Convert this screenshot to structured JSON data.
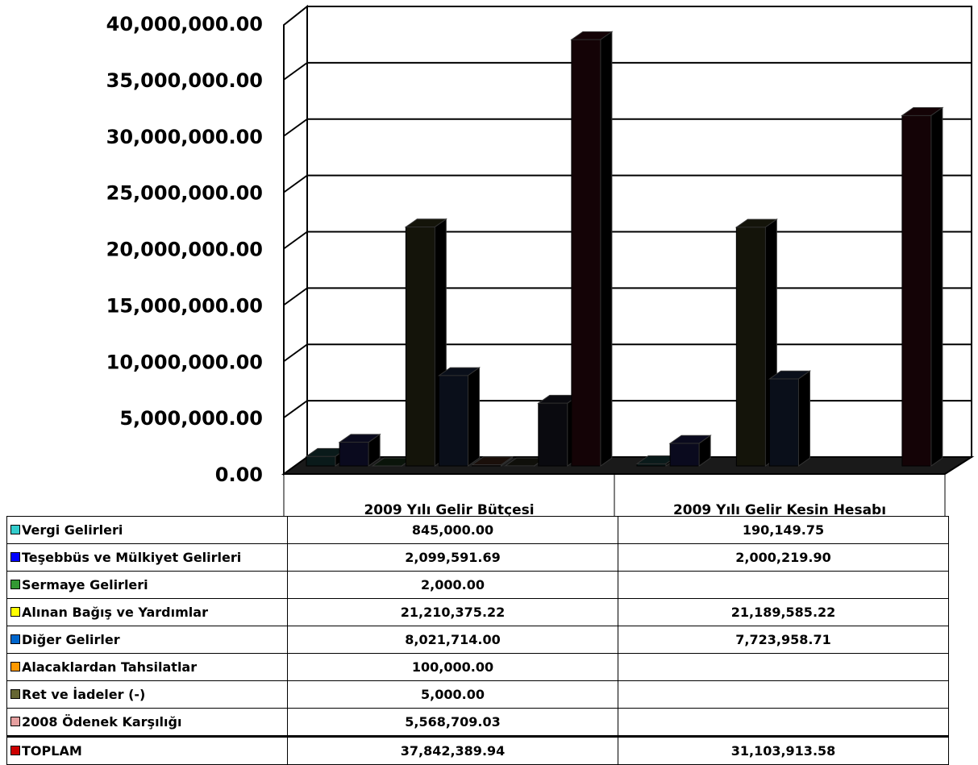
{
  "chart_data": {
    "type": "bar",
    "categories": [
      "2009  Yılı  Gelir Bütçesi",
      "2009 Yılı Gelir Kesin Hesabı"
    ],
    "ylim": [
      0,
      40000000
    ],
    "yticks": [
      "0.00",
      "5,000,000.00",
      "10,000,000.00",
      "15,000,000.00",
      "20,000,000.00",
      "25,000,000.00",
      "30,000,000.00",
      "35,000,000.00",
      "40,000,000.00"
    ],
    "grid": true,
    "legend": "table below chart",
    "series": [
      {
        "name": "Vergi Gelirleri",
        "values": [
          845000.0,
          190149.75
        ],
        "labels": [
          "845,000.00",
          "190,149.75"
        ],
        "swatch": "#33cccc",
        "bar": "#0a1a1a"
      },
      {
        "name": "Teşebbüs ve Mülkiyet Gelirleri",
        "values": [
          2099591.69,
          2000219.9
        ],
        "labels": [
          "2,099,591.69",
          "2,000,219.90"
        ],
        "swatch": "#0000ff",
        "bar": "#0a0a1e"
      },
      {
        "name": "Sermaye Gelirleri",
        "values": [
          2000.0,
          null
        ],
        "labels": [
          "2,000.00",
          ""
        ],
        "swatch": "#339933",
        "bar": "#0a140a"
      },
      {
        "name": "Alınan Bağış ve Yardımlar",
        "values": [
          21210375.22,
          21189585.22
        ],
        "labels": [
          "21,210,375.22",
          "21,189,585.22"
        ],
        "swatch": "#ffff00",
        "bar": "#14140a"
      },
      {
        "name": "Diğer Gelirler",
        "values": [
          8021714.0,
          7723958.71
        ],
        "labels": [
          "8,021,714.00",
          "7,723,958.71"
        ],
        "swatch": "#0066cc",
        "bar": "#0a0f1a"
      },
      {
        "name": "Alacaklardan Tahsilatlar",
        "values": [
          100000.0,
          null
        ],
        "labels": [
          "100,000.00",
          ""
        ],
        "swatch": "#ff9900",
        "bar": "#1a0f0a"
      },
      {
        "name": "Ret ve İadeler (-)",
        "values": [
          5000.0,
          null
        ],
        "labels": [
          "5,000.00",
          ""
        ],
        "swatch": "#666633",
        "bar": "#0f0f0a"
      },
      {
        "name": "2008 Ödenek Karşılığı",
        "values": [
          5568709.03,
          null
        ],
        "labels": [
          "5,568,709.03",
          ""
        ],
        "swatch": "#e6a0a0",
        "bar": "#0a0a0f"
      },
      {
        "name": "TOPLAM",
        "values": [
          37842389.94,
          31103913.58
        ],
        "labels": [
          "37,842,389.94",
          "31,103,913.58"
        ],
        "swatch": "#cc0000",
        "bar": "#140306"
      }
    ]
  }
}
